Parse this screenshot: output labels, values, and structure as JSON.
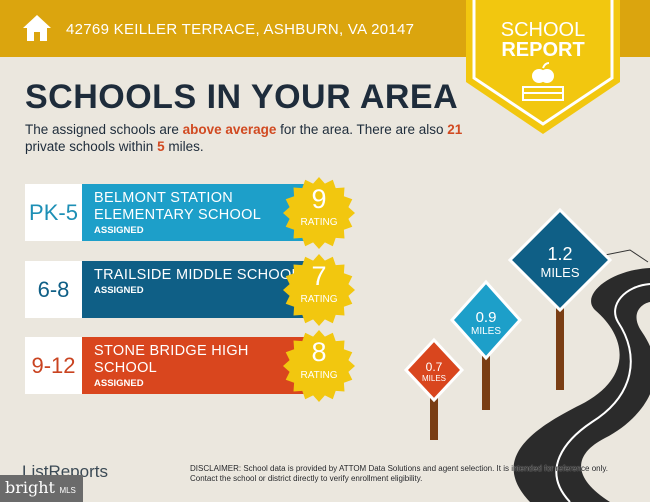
{
  "header": {
    "address": "42769 KEILLER TERRACE, ASHBURN, VA 20147",
    "badge_line1": "SCHOOL",
    "badge_line2": "REPORT",
    "icon": "home-icon",
    "color": "#dba50e",
    "badge_color": "#f2c70f"
  },
  "title": "SCHOOLS IN YOUR AREA",
  "subtitle": {
    "p1": "The assigned schools are ",
    "above": "above average",
    "p2": " for the area. There are also ",
    "count": "21",
    "p3": " private schools within ",
    "miles": "5",
    "p4": " miles."
  },
  "schools": [
    {
      "grade": "PK-5",
      "name": "BELMONT STATION ELEMENTARY SCHOOL",
      "status": "ASSIGNED",
      "rating": "9",
      "rating_label": "RATING",
      "color": "#1d9fc9",
      "grade_color": "#1d8fb5"
    },
    {
      "grade": "6-8",
      "name": "TRAILSIDE MIDDLE SCHOOL",
      "status": "ASSIGNED",
      "rating": "7",
      "rating_label": "RATING",
      "color": "#0f5f86",
      "grade_color": "#0f5f86"
    },
    {
      "grade": "9-12",
      "name": "STONE BRIDGE HIGH SCHOOL",
      "status": "ASSIGNED",
      "rating": "8",
      "rating_label": "RATING",
      "color": "#d9461e",
      "grade_color": "#c94320"
    }
  ],
  "signs": [
    {
      "value": "1.2",
      "unit": "MILES"
    },
    {
      "value": "0.9",
      "unit": "MILES"
    },
    {
      "value": "0.7",
      "unit": "MILES"
    }
  ],
  "footer": {
    "logo": "ListReports",
    "bright": "bright",
    "mls": "MLS",
    "disclaimer_label": "DISCLAIMER:",
    "disclaimer": " School data is provided by ATTOM Data Solutions and agent selection. It is intended for reference only. Contact the school or district directly to verify enrollment eligibility."
  }
}
